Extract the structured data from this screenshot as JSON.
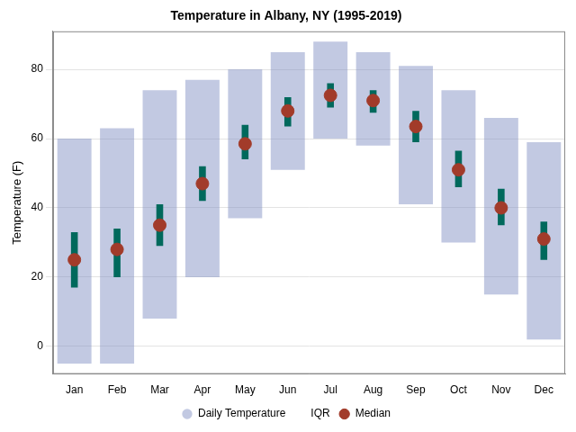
{
  "chart_data": {
    "type": "range",
    "title": "Temperature in Albany, NY (1995-2019)",
    "y_label": "Temperature (F)",
    "categories": [
      "Jan",
      "Feb",
      "Mar",
      "Apr",
      "May",
      "Jun",
      "Jul",
      "Aug",
      "Sep",
      "Oct",
      "Nov",
      "Dec"
    ],
    "series": [
      {
        "name": "Daily Temperature",
        "color": "rgba(120, 136, 190, 0.45)",
        "marker": "circle",
        "min": [
          -5,
          -5,
          8,
          20,
          37,
          51,
          60,
          58,
          41,
          30,
          15,
          2
        ],
        "max": [
          60,
          63,
          74,
          77,
          80,
          85,
          88,
          85,
          81,
          74,
          66,
          59
        ]
      },
      {
        "name": "IQR",
        "color": "#00695c",
        "low": [
          17,
          20,
          29,
          42,
          54,
          63.5,
          69,
          67.5,
          59,
          46,
          35,
          25
        ],
        "high": [
          33,
          34,
          41,
          52,
          64,
          72,
          76,
          74,
          68,
          56.5,
          45.5,
          36
        ]
      },
      {
        "name": "Median",
        "color": "#a23b2a",
        "marker": "circle",
        "values": [
          25,
          28,
          35,
          47,
          58.5,
          68,
          72.5,
          71,
          63.5,
          51,
          40,
          31
        ]
      }
    ],
    "ylim": [
      -8,
      91
    ],
    "yticks": [
      0,
      20,
      40,
      60,
      80
    ],
    "grid": true,
    "legend": "bottom"
  }
}
